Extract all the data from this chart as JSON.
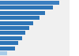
{
  "values": [
    12.8,
    11.5,
    9.8,
    8.5,
    7.2,
    6.3,
    5.5,
    4.7,
    3.9,
    3.2,
    1.5
  ],
  "bar_colors": [
    "#3a7fc1",
    "#2e75b6",
    "#2e75b6",
    "#2e75b6",
    "#2e75b6",
    "#2e75b6",
    "#2e75b6",
    "#2e75b6",
    "#2e75b6",
    "#2e75b6",
    "#a8cce8"
  ],
  "background_color": "#ffffff",
  "plot_bg": "#f0f0f0",
  "xlim": [
    0,
    15
  ],
  "bar_height": 0.78
}
